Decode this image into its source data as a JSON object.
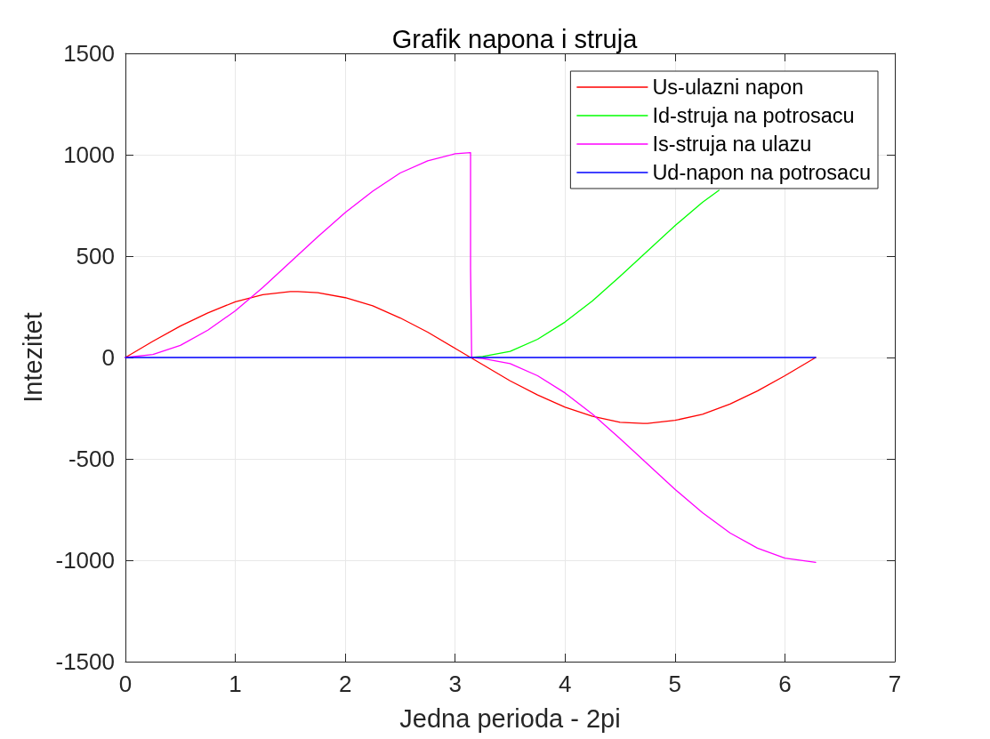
{
  "chart_data": {
    "type": "line",
    "title": "Grafik napona i struja",
    "xlabel": "Jedna perioda - 2pi",
    "ylabel": "Intezitet",
    "xlim": [
      0,
      7
    ],
    "xticks": [
      0,
      1,
      2,
      3,
      4,
      5,
      6,
      7
    ],
    "ylim": [
      -1500,
      1500
    ],
    "yticks": [
      -1500,
      -1000,
      -500,
      0,
      500,
      1000,
      1500
    ],
    "grid": true,
    "legend": "top right",
    "series": [
      {
        "name": "Us-ulazni napon",
        "color": "#ff0000",
        "x": [
          0,
          0.25,
          0.5,
          0.75,
          1,
          1.25,
          1.5,
          1.57,
          1.75,
          2,
          2.25,
          2.5,
          2.75,
          3,
          3.14,
          3.25,
          3.5,
          3.75,
          4,
          4.25,
          4.5,
          4.71,
          4.75,
          5,
          5.25,
          5.5,
          5.75,
          6,
          6.28
        ],
        "values": [
          0,
          80,
          155,
          220,
          275,
          310,
          325,
          325,
          320,
          295,
          255,
          195,
          125,
          45,
          0,
          -35,
          -115,
          -185,
          -245,
          -290,
          -320,
          -325,
          -325,
          -310,
          -280,
          -230,
          -165,
          -90,
          0
        ]
      },
      {
        "name": "Id-struja na potrosacu",
        "color": "#00ff00",
        "x": [
          3.14,
          3.25,
          3.5,
          3.75,
          4,
          4.25,
          4.5,
          4.75,
          5,
          5.25,
          5.4
        ],
        "values": [
          0,
          5,
          30,
          90,
          175,
          280,
          400,
          525,
          650,
          765,
          825
        ]
      },
      {
        "name": "Is-struja na ulazu",
        "color": "#ff00ff",
        "x": [
          0,
          0.25,
          0.5,
          0.75,
          1,
          1.25,
          1.5,
          1.75,
          2,
          2.25,
          2.5,
          2.75,
          3,
          3.14,
          3.14,
          3.15,
          3.25,
          3.5,
          3.75,
          4,
          4.25,
          4.5,
          4.75,
          5,
          5.25,
          5.5,
          5.75,
          6,
          6.28
        ],
        "values": [
          0,
          15,
          60,
          135,
          230,
          345,
          470,
          595,
          715,
          820,
          910,
          970,
          1005,
          1010,
          440,
          0,
          -5,
          -30,
          -90,
          -175,
          -280,
          -400,
          -525,
          -650,
          -765,
          -865,
          -940,
          -990,
          -1010
        ]
      },
      {
        "name": "Ud-napon na potrosacu",
        "color": "#0000ff",
        "x": [
          0,
          6.28
        ],
        "values": [
          0,
          0
        ]
      }
    ]
  }
}
